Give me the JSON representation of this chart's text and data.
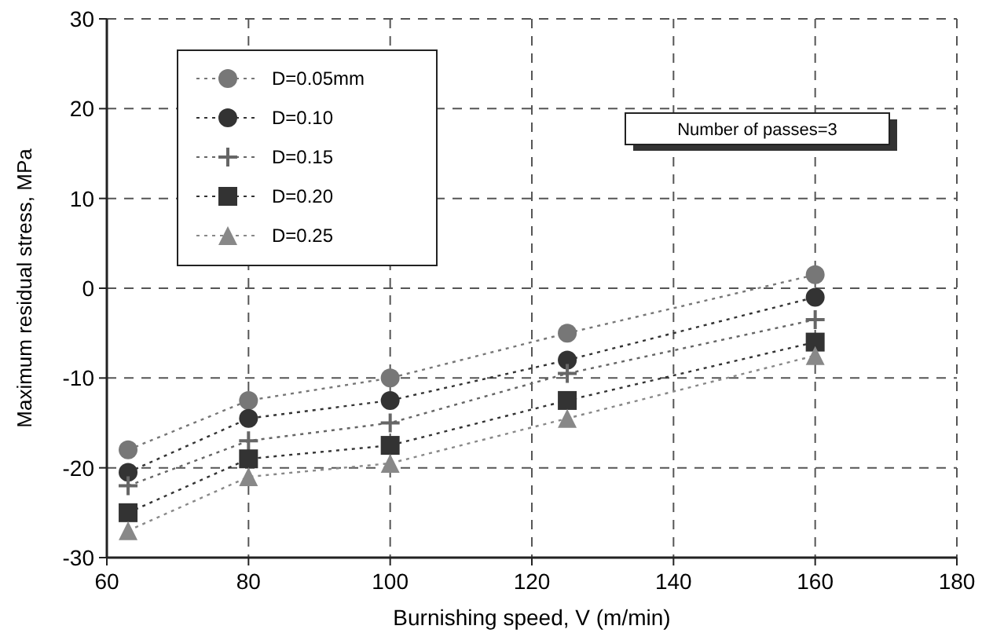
{
  "chart_data": {
    "type": "line",
    "xlabel": "Burnishing speed, V (m/min)",
    "ylabel": "Maximum residual stress, MPa",
    "x": [
      63,
      80,
      100,
      125,
      160
    ],
    "series": [
      {
        "name": "D=0.05mm",
        "color": "#777777",
        "marker": "circle",
        "values": [
          -18,
          -12.5,
          -10,
          -5,
          1.5
        ]
      },
      {
        "name": "D=0.10",
        "color": "#333333",
        "marker": "circle",
        "values": [
          -20.5,
          -14.5,
          -12.5,
          -8,
          -1
        ]
      },
      {
        "name": "D=0.15",
        "color": "#666666",
        "marker": "cross",
        "values": [
          -22,
          -17,
          -15,
          -9.5,
          -3.5
        ]
      },
      {
        "name": "D=0.20",
        "color": "#333333",
        "marker": "square",
        "values": [
          -25,
          -19,
          -17.5,
          -12.5,
          -6
        ]
      },
      {
        "name": "D=0.25",
        "color": "#888888",
        "marker": "triangle",
        "values": [
          -27,
          -21,
          -19.5,
          -14.5,
          -7.5
        ]
      }
    ],
    "line_style": "dotted",
    "grid": true,
    "legend": "top left",
    "xlim": [
      60,
      180
    ],
    "xticks": [
      60,
      80,
      100,
      120,
      140,
      160,
      180
    ],
    "ylim": [
      -30,
      30
    ],
    "yticks": [
      -30,
      -20,
      -10,
      0,
      10,
      20,
      30
    ],
    "annotations": [
      "Number of passes=3"
    ]
  }
}
